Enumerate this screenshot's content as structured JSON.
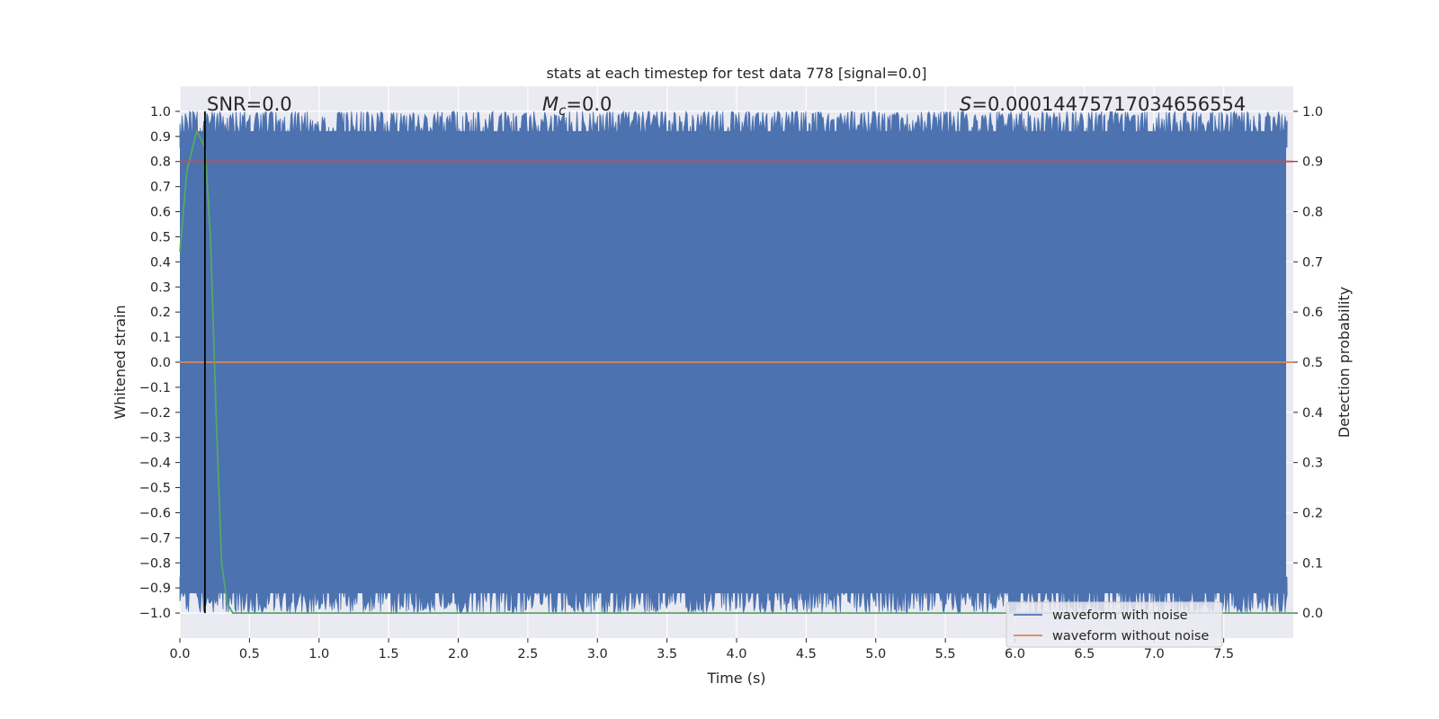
{
  "chart_data": {
    "type": "line",
    "title": "stats at each timestep for test data 778 [signal=0.0]",
    "xlabel": "Time (s)",
    "ylabel": "Whitened strain",
    "ylabel_right": "Detection probability",
    "xlim": [
      0.0,
      8.0
    ],
    "ylim": [
      -1.1,
      1.1
    ],
    "ylim_right": [
      -0.05,
      1.05
    ],
    "x_ticks": [
      "0.0",
      "0.5",
      "1.0",
      "1.5",
      "2.0",
      "2.5",
      "3.0",
      "3.5",
      "4.0",
      "4.5",
      "5.0",
      "5.5",
      "6.0",
      "6.5",
      "7.0",
      "7.5"
    ],
    "y_ticks": [
      "1.0",
      "0.9",
      "0.8",
      "0.7",
      "0.6",
      "0.5",
      "0.4",
      "0.3",
      "0.2",
      "0.1",
      "0.0",
      "−0.1",
      "−0.2",
      "−0.3",
      "−0.4",
      "−0.5",
      "−0.6",
      "−0.7",
      "−0.8",
      "−0.9",
      "−1.0"
    ],
    "y_ticks_right": [
      "1.0",
      "0.9",
      "0.8",
      "0.7",
      "0.6",
      "0.5",
      "0.4",
      "0.3",
      "0.2",
      "0.1",
      "0.0"
    ],
    "annotations": {
      "snr": "SNR=0.0",
      "mc_symbol": "M",
      "mc_sub": "c",
      "mc_value": "=0.0",
      "s_symbol": "S",
      "s_value": "=0.00014475717034656554"
    },
    "legend": {
      "position": "lower-right",
      "entries": [
        "waveform with noise",
        "waveform without noise"
      ]
    },
    "series": [
      {
        "name": "waveform with noise",
        "axis": "left",
        "color": "#4c72b0",
        "description": "dense noise filling approximately -1.0 to 1.0 over 0 to 8 s"
      },
      {
        "name": "waveform without noise",
        "axis": "left",
        "color": "#dd8452",
        "values": [
          0.0,
          0.0
        ],
        "x": [
          0.0,
          8.0
        ]
      },
      {
        "name": "detection probability",
        "axis": "right",
        "color": "#55a868",
        "x": [
          0.0,
          0.05,
          0.12,
          0.18,
          0.22,
          0.26,
          0.3,
          0.34,
          0.38,
          8.0
        ],
        "values": [
          0.72,
          0.88,
          0.96,
          0.93,
          0.75,
          0.4,
          0.1,
          0.02,
          0.0,
          0.0
        ]
      },
      {
        "name": "threshold",
        "axis": "right",
        "color": "#c44e52",
        "x": [
          0.0,
          8.0
        ],
        "values": [
          0.9,
          0.9
        ]
      },
      {
        "name": "detection marker",
        "axis": "left",
        "color": "#000000",
        "type": "vline",
        "x": 0.18
      }
    ],
    "colors": {
      "background": "#eaeaf2",
      "grid": "#ffffff",
      "noise": "#4c72b0",
      "clean": "#dd8452",
      "prob": "#55a868",
      "threshold": "#c44e52"
    }
  }
}
